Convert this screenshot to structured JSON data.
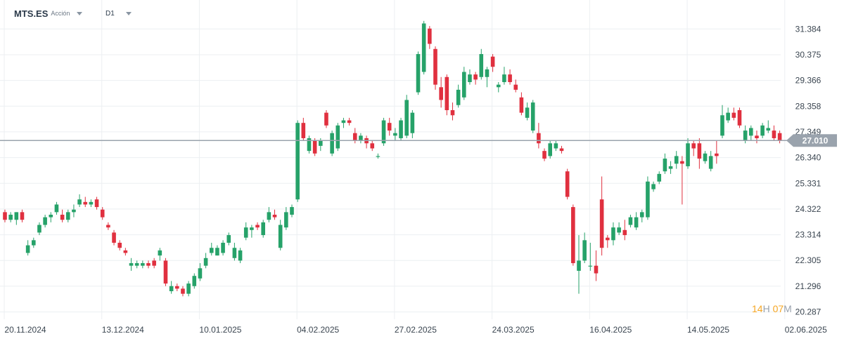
{
  "header": {
    "symbol": "MTS.ES",
    "instrument": "Acción",
    "timeframe": "D1"
  },
  "countdown": {
    "hours": "14",
    "hours_unit": "H",
    "minutes": "07",
    "minutes_unit": "M"
  },
  "colors": {
    "up": "#26a269",
    "down": "#e0303f",
    "grid": "#eceff2",
    "price_line": "#9aa3ad",
    "text": "#3a4550"
  },
  "chart_data": {
    "type": "candlestick",
    "ylim": [
      20.0,
      32.3
    ],
    "y_ticks": [
      "31.384",
      "30.375",
      "29.366",
      "28.358",
      "27.349",
      "26.340",
      "25.331",
      "24.322",
      "23.314",
      "22.305",
      "21.296",
      "20.287"
    ],
    "x_ticks": [
      {
        "label": "20.11.2024",
        "index": 0
      },
      {
        "label": "13.12.2024",
        "index": 17
      },
      {
        "label": "10.01.2025",
        "index": 34
      },
      {
        "label": "04.02.2025",
        "index": 51
      },
      {
        "label": "27.02.2025",
        "index": 68
      },
      {
        "label": "24.03.2025",
        "index": 85
      },
      {
        "label": "16.04.2025",
        "index": 102
      },
      {
        "label": "14.05.2025",
        "index": 119
      },
      {
        "label": "02.06.2025",
        "index": 136
      }
    ],
    "last_price": 27.01,
    "last_price_label": "27.010",
    "candles": [
      [
        24.2,
        24.3,
        23.8,
        23.9
      ],
      [
        23.9,
        24.2,
        23.8,
        24.1
      ],
      [
        23.9,
        24.2,
        23.7,
        24.2
      ],
      [
        24.2,
        24.3,
        23.8,
        23.9
      ],
      [
        22.6,
        23.1,
        22.5,
        22.9
      ],
      [
        22.9,
        23.2,
        22.8,
        23.1
      ],
      [
        23.4,
        23.8,
        23.3,
        23.7
      ],
      [
        23.7,
        24.1,
        23.6,
        24.0
      ],
      [
        24.0,
        24.2,
        23.8,
        24.1
      ],
      [
        24.2,
        24.6,
        24.1,
        24.5
      ],
      [
        24.1,
        24.3,
        23.8,
        23.9
      ],
      [
        23.9,
        24.3,
        23.8,
        24.2
      ],
      [
        24.2,
        24.5,
        24.0,
        24.3
      ],
      [
        24.5,
        24.9,
        24.4,
        24.7
      ],
      [
        24.6,
        24.8,
        24.4,
        24.5
      ],
      [
        24.5,
        24.7,
        24.4,
        24.6
      ],
      [
        24.7,
        24.8,
        24.3,
        24.4
      ],
      [
        24.3,
        24.4,
        23.9,
        24.0
      ],
      [
        23.7,
        23.8,
        23.5,
        23.6
      ],
      [
        23.4,
        23.5,
        22.9,
        23.0
      ],
      [
        23.0,
        23.1,
        22.7,
        22.8
      ],
      [
        22.7,
        22.8,
        22.5,
        22.6
      ],
      [
        22.1,
        22.4,
        21.9,
        22.2
      ],
      [
        22.1,
        22.3,
        22.0,
        22.2
      ],
      [
        22.1,
        22.3,
        22.0,
        22.2
      ],
      [
        22.2,
        22.3,
        22.0,
        22.1
      ],
      [
        22.3,
        22.4,
        22.0,
        22.1
      ],
      [
        22.5,
        22.8,
        22.3,
        22.7
      ],
      [
        22.3,
        22.4,
        21.3,
        21.4
      ],
      [
        21.1,
        21.5,
        21.0,
        21.3
      ],
      [
        21.3,
        21.4,
        21.1,
        21.2
      ],
      [
        21.2,
        21.3,
        20.9,
        21.0
      ],
      [
        21.0,
        21.5,
        20.9,
        21.4
      ],
      [
        21.3,
        21.8,
        21.2,
        21.7
      ],
      [
        21.6,
        22.2,
        21.5,
        22.0
      ],
      [
        22.1,
        22.6,
        22.0,
        22.4
      ],
      [
        22.6,
        23.0,
        22.5,
        22.8
      ],
      [
        22.5,
        22.9,
        22.5,
        22.8
      ],
      [
        22.6,
        23.1,
        22.5,
        23.0
      ],
      [
        23.0,
        23.4,
        22.9,
        23.3
      ],
      [
        22.4,
        23.0,
        22.3,
        22.8
      ],
      [
        22.3,
        22.8,
        22.2,
        22.7
      ],
      [
        23.2,
        23.8,
        23.1,
        23.6
      ],
      [
        23.5,
        23.7,
        23.2,
        23.6
      ],
      [
        23.7,
        23.8,
        23.5,
        23.6
      ],
      [
        23.3,
        23.9,
        23.2,
        23.8
      ],
      [
        23.9,
        24.4,
        23.8,
        24.2
      ],
      [
        24.1,
        24.3,
        23.9,
        24.0
      ],
      [
        22.8,
        23.9,
        22.7,
        23.7
      ],
      [
        23.6,
        24.4,
        23.5,
        24.2
      ],
      [
        24.1,
        24.5,
        24.0,
        24.4
      ],
      [
        24.7,
        27.8,
        24.6,
        27.7
      ],
      [
        27.7,
        27.9,
        27.0,
        27.1
      ],
      [
        26.6,
        27.2,
        26.5,
        27.1
      ],
      [
        27.0,
        27.1,
        26.4,
        26.5
      ],
      [
        26.8,
        27.1,
        26.6,
        27.0
      ],
      [
        28.1,
        28.2,
        27.5,
        27.6
      ],
      [
        26.5,
        27.4,
        26.4,
        27.3
      ],
      [
        26.7,
        27.7,
        26.6,
        27.6
      ],
      [
        27.7,
        27.9,
        27.5,
        27.8
      ],
      [
        27.8,
        27.9,
        27.6,
        27.7
      ],
      [
        27.3,
        27.5,
        26.9,
        27.0
      ],
      [
        27.0,
        27.3,
        26.9,
        27.2
      ],
      [
        27.1,
        27.2,
        26.7,
        26.9
      ],
      [
        26.9,
        27.0,
        26.6,
        26.7
      ],
      [
        26.4,
        26.5,
        26.3,
        26.4
      ],
      [
        26.9,
        27.9,
        26.8,
        27.8
      ],
      [
        27.7,
        27.9,
        27.2,
        27.4
      ],
      [
        27.2,
        27.5,
        27.0,
        27.3
      ],
      [
        27.1,
        27.9,
        27.0,
        27.8
      ],
      [
        27.2,
        28.8,
        27.1,
        28.6
      ],
      [
        27.3,
        28.2,
        27.1,
        28.1
      ],
      [
        28.9,
        30.5,
        28.8,
        30.4
      ],
      [
        29.7,
        31.7,
        29.6,
        31.6
      ],
      [
        31.4,
        31.5,
        30.6,
        30.8
      ],
      [
        30.6,
        30.7,
        29.0,
        29.2
      ],
      [
        29.1,
        29.5,
        28.3,
        28.6
      ],
      [
        29.5,
        29.6,
        28.0,
        28.2
      ],
      [
        28.2,
        28.5,
        27.8,
        28.0
      ],
      [
        28.4,
        29.2,
        28.3,
        29.0
      ],
      [
        28.7,
        29.9,
        28.6,
        29.7
      ],
      [
        29.3,
        29.8,
        29.2,
        29.6
      ],
      [
        29.6,
        29.7,
        29.2,
        29.4
      ],
      [
        29.5,
        30.6,
        29.4,
        30.4
      ],
      [
        29.5,
        29.9,
        29.1,
        29.8
      ],
      [
        30.3,
        30.4,
        29.7,
        29.9
      ],
      [
        29.1,
        29.3,
        28.9,
        29.2
      ],
      [
        29.3,
        29.9,
        29.2,
        29.6
      ],
      [
        29.6,
        29.8,
        29.2,
        29.3
      ],
      [
        29.2,
        29.4,
        28.9,
        29.0
      ],
      [
        28.7,
        28.9,
        28.0,
        28.1
      ],
      [
        27.9,
        28.5,
        27.8,
        28.3
      ],
      [
        27.4,
        28.6,
        27.3,
        28.5
      ],
      [
        27.3,
        27.7,
        26.7,
        26.9
      ],
      [
        26.6,
        26.7,
        26.2,
        26.3
      ],
      [
        26.4,
        27.0,
        26.3,
        26.9
      ],
      [
        26.7,
        27.0,
        26.6,
        26.9
      ],
      [
        26.7,
        26.8,
        26.5,
        26.6
      ],
      [
        25.8,
        25.9,
        24.7,
        24.8
      ],
      [
        24.4,
        24.5,
        22.1,
        22.2
      ],
      [
        21.9,
        23.3,
        21.0,
        22.3
      ],
      [
        22.3,
        23.4,
        22.2,
        23.1
      ],
      [
        22.1,
        23.0,
        21.9,
        22.1
      ],
      [
        22.1,
        22.7,
        21.5,
        21.8
      ],
      [
        24.7,
        25.6,
        22.5,
        22.8
      ],
      [
        23.2,
        23.3,
        22.8,
        23.1
      ],
      [
        23.1,
        23.8,
        22.9,
        23.6
      ],
      [
        23.4,
        23.8,
        23.3,
        23.6
      ],
      [
        23.5,
        23.9,
        23.1,
        23.3
      ],
      [
        23.7,
        24.1,
        23.6,
        24.0
      ],
      [
        23.6,
        24.2,
        23.5,
        24.0
      ],
      [
        24.0,
        24.3,
        23.8,
        24.2
      ],
      [
        24.0,
        25.6,
        23.9,
        25.4
      ],
      [
        25.1,
        25.4,
        25.0,
        25.3
      ],
      [
        25.4,
        25.8,
        25.3,
        25.7
      ],
      [
        25.8,
        26.5,
        25.7,
        26.3
      ],
      [
        25.9,
        26.2,
        25.7,
        26.0
      ],
      [
        26.1,
        26.6,
        25.9,
        26.4
      ],
      [
        26.2,
        26.4,
        24.5,
        26.1
      ],
      [
        26.0,
        27.1,
        25.9,
        26.9
      ],
      [
        26.9,
        27.0,
        26.4,
        26.7
      ],
      [
        26.9,
        27.1,
        25.9,
        26.3
      ],
      [
        26.2,
        26.6,
        26.1,
        26.5
      ],
      [
        25.9,
        26.6,
        25.8,
        26.4
      ],
      [
        26.5,
        27.0,
        26.1,
        26.4
      ],
      [
        27.2,
        28.4,
        27.1,
        28.0
      ],
      [
        27.8,
        28.3,
        27.7,
        28.1
      ],
      [
        28.1,
        28.3,
        27.8,
        27.9
      ],
      [
        28.2,
        28.3,
        27.5,
        27.6
      ],
      [
        27.0,
        27.6,
        26.9,
        27.4
      ],
      [
        27.2,
        27.6,
        27.0,
        27.5
      ],
      [
        27.2,
        27.4,
        26.9,
        27.1
      ],
      [
        27.2,
        27.7,
        27.1,
        27.6
      ],
      [
        27.4,
        27.8,
        27.3,
        27.5
      ],
      [
        27.4,
        27.6,
        27.0,
        27.1
      ],
      [
        27.3,
        27.4,
        26.9,
        27.0
      ]
    ]
  }
}
